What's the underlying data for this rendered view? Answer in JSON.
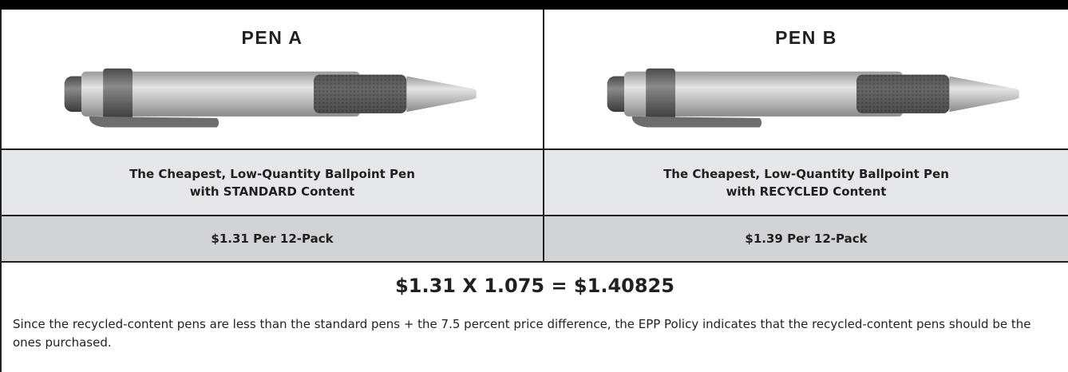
{
  "columns": [
    {
      "title": "PEN A",
      "description": [
        "The Cheapest, Low-Quantity Ballpoint Pen",
        "with STANDARD Content"
      ],
      "price": "$1.31 Per 12-Pack"
    },
    {
      "title": "PEN B",
      "description": [
        "The Cheapest, Low-Quantity Ballpoint Pen",
        "with RECYCLED Content"
      ],
      "price": "$1.39 Per 12-Pack"
    }
  ],
  "formula": "$1.31 X 1.075 = $1.40825",
  "note": "Since the recycled-content pens are less than the standard pens + the 7.5 percent price difference, the EPP Policy indicates that the recycled-content pens should be the ones purchased."
}
